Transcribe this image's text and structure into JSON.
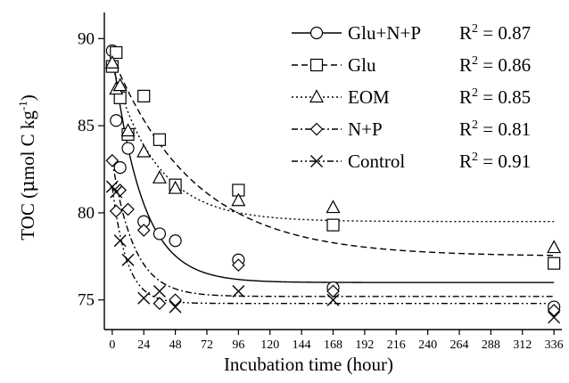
{
  "chart_data": {
    "type": "scatter",
    "title": "",
    "xlabel": "Incubation time (hour)",
    "ylabel_prefix": "TOC (",
    "ylabel_mu": "μ",
    "ylabel_mid": "mol C kg",
    "ylabel_sup": "-1",
    "ylabel_suffix": ")",
    "xlim": [
      -6,
      342
    ],
    "ylim": [
      73.3,
      91.5
    ],
    "x_ticks": [
      0,
      24,
      48,
      72,
      96,
      120,
      144,
      168,
      192,
      216,
      240,
      264,
      288,
      312,
      336
    ],
    "y_ticks": [
      75,
      80,
      85,
      90
    ],
    "grid": false,
    "legend_position": "top-right",
    "series": [
      {
        "name": "Glu+N+P",
        "marker": "circle",
        "line_style": "solid",
        "r2_label": "R",
        "r2_sup": "2",
        "r2_value": " = 0.87",
        "fit": {
          "a": 76.0,
          "b": 13.3,
          "k": 0.045
        },
        "points": [
          [
            0,
            89.3
          ],
          [
            3,
            85.3
          ],
          [
            6,
            82.6
          ],
          [
            12,
            83.7
          ],
          [
            24,
            79.5
          ],
          [
            36,
            78.8
          ],
          [
            48,
            78.4
          ],
          [
            96,
            77.3
          ],
          [
            168,
            75.7
          ],
          [
            336,
            74.6
          ]
        ]
      },
      {
        "name": "Glu",
        "marker": "square",
        "line_style": "dashed",
        "r2_label": "R",
        "r2_sup": "2",
        "r2_value": " = 0.86",
        "fit": {
          "a": 77.5,
          "b": 11.5,
          "k": 0.016
        },
        "points": [
          [
            0,
            88.4
          ],
          [
            3,
            89.2
          ],
          [
            6,
            86.6
          ],
          [
            12,
            84.5
          ],
          [
            24,
            86.7
          ],
          [
            36,
            84.2
          ],
          [
            48,
            81.6
          ],
          [
            96,
            81.3
          ],
          [
            168,
            79.3
          ],
          [
            336,
            77.1
          ]
        ]
      },
      {
        "name": "EOM",
        "marker": "triangle",
        "line_style": "dotted",
        "r2_label": "R",
        "r2_sup": "2",
        "r2_value": " = 0.85",
        "fit": {
          "a": 79.5,
          "b": 9.0,
          "k": 0.03
        },
        "points": [
          [
            0,
            88.6
          ],
          [
            3,
            87.1
          ],
          [
            6,
            87.3
          ],
          [
            12,
            84.7
          ],
          [
            24,
            83.5
          ],
          [
            36,
            82.0
          ],
          [
            48,
            81.4
          ],
          [
            96,
            80.7
          ],
          [
            168,
            80.3
          ],
          [
            336,
            78.0
          ]
        ]
      },
      {
        "name": "N+P",
        "marker": "diamond",
        "line_style": "dashdot",
        "r2_label": "R",
        "r2_sup": "2",
        "r2_value": " = 0.81",
        "fit": {
          "a": 75.2,
          "b": 7.8,
          "k": 0.06
        },
        "points": [
          [
            0,
            83.0
          ],
          [
            3,
            80.1
          ],
          [
            6,
            81.3
          ],
          [
            12,
            80.2
          ],
          [
            24,
            79.0
          ],
          [
            36,
            74.8
          ],
          [
            48,
            75.0
          ],
          [
            96,
            77.0
          ],
          [
            168,
            75.5
          ],
          [
            336,
            74.4
          ]
        ]
      },
      {
        "name": "Control",
        "marker": "cross",
        "line_style": "dashdotdot",
        "r2_label": "R",
        "r2_sup": "2",
        "r2_value": " = 0.91",
        "fit": {
          "a": 74.8,
          "b": 6.7,
          "k": 0.09
        },
        "points": [
          [
            0,
            81.5
          ],
          [
            3,
            81.2
          ],
          [
            6,
            78.4
          ],
          [
            12,
            77.3
          ],
          [
            24,
            75.1
          ],
          [
            36,
            75.5
          ],
          [
            48,
            74.6
          ],
          [
            96,
            75.5
          ],
          [
            168,
            75.0
          ],
          [
            336,
            74.0
          ]
        ]
      }
    ]
  }
}
